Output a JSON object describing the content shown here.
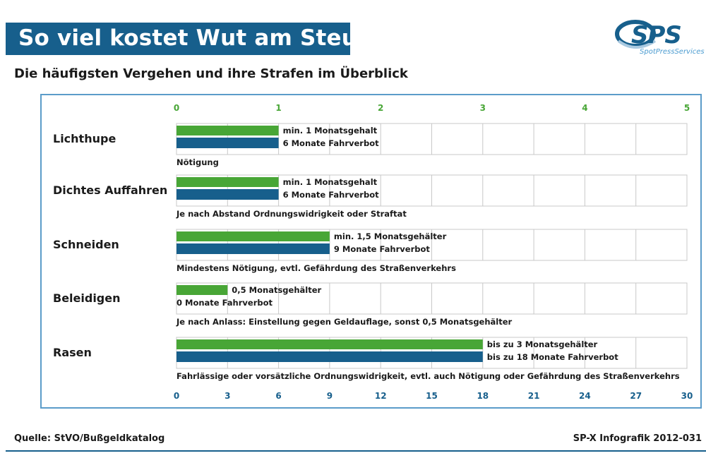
{
  "header": {
    "title": "So viel kostet Wut am Steuer",
    "subtitle": "Die häufigsten Vergehen und ihre Strafen im Überblick"
  },
  "logo": {
    "letters": "SPS",
    "tagline": "SpotPressServices"
  },
  "footer": {
    "source": "Quelle: StVO/Bußgeldkatalog",
    "credit": "SP-X Infografik 2012-031"
  },
  "colors": {
    "green": "#48a636",
    "blue": "#175f8c",
    "grid": "#c8c8c8",
    "axis_green": "#48a636",
    "axis_blue": "#175f8c"
  },
  "chart_data": {
    "type": "bar",
    "orientation": "horizontal",
    "categories": [
      "Lichthupe",
      "Dichtes Auffahren",
      "Schneiden",
      "Beleidigen",
      "Rasen"
    ],
    "series": [
      {
        "values": [
          1,
          1,
          1.5,
          0.5,
          3
        ],
        "labels": [
          "min. 1 Monatsgehalt",
          "min. 1 Monatsgehalt",
          "min. 1,5 Monatsgehälter",
          "0,5 Monatsgehälter",
          "bis zu 3 Monatsgehälter"
        ],
        "color": "#48a636"
      },
      {
        "values": [
          6,
          6,
          9,
          0,
          18
        ],
        "labels": [
          "6 Monate Fahrverbot",
          "6 Monate Fahrverbot",
          "9 Monate Fahrverbot",
          "0 Monate Fahrverbot",
          "bis zu 18 Monate Fahrverbot"
        ],
        "color": "#175f8c"
      }
    ],
    "notes": [
      "Nötigung",
      "Je nach Abstand Ordnungswidrigkeit oder Straftat",
      "Mindestens Nötigung, evtl. Gefährdung des Straßenverkehrs",
      "Je nach Anlass: Einstellung gegen Geldauflage, sonst 0,5 Monatsgehälter",
      "Fahrlässige oder vorsätzliche Ordnungswidrigkeit, evtl. auch Nötigung oder Gefährdung des Straßenverkehrs"
    ],
    "top_axis": {
      "ticks": [
        0,
        1,
        2,
        3,
        4,
        5
      ],
      "ticklabels": [
        "0",
        "1",
        "2",
        "3",
        "4",
        "5"
      ],
      "range": [
        0,
        5
      ]
    },
    "bottom_axis": {
      "ticks": [
        0,
        3,
        6,
        9,
        12,
        15,
        18,
        21,
        24,
        27,
        30
      ],
      "ticklabels": [
        "0",
        "3",
        "6",
        "9",
        "12",
        "15",
        "18",
        "21",
        "24",
        "27",
        "30"
      ],
      "range": [
        0,
        30
      ]
    },
    "grid": true
  }
}
